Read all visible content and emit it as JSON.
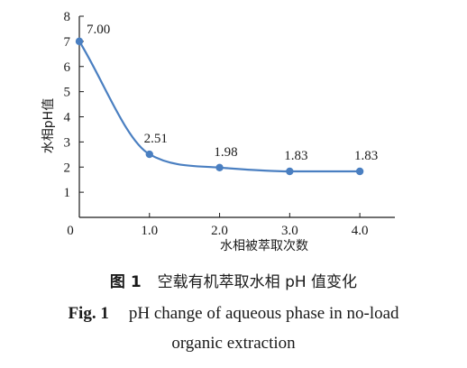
{
  "chart_data": {
    "type": "line",
    "x": [
      0,
      1.0,
      2.0,
      3.0,
      4.0
    ],
    "y": [
      7.0,
      2.51,
      1.98,
      1.83,
      1.83
    ],
    "data_labels": [
      "7.00",
      "2.51",
      "1.98",
      "1.83",
      "1.83"
    ],
    "xlabel": "水相被萃取次数",
    "ylabel": "水相pH值",
    "xlim": [
      0,
      4.5
    ],
    "ylim": [
      0,
      8
    ],
    "x_ticks": [
      0,
      1.0,
      2.0,
      3.0,
      4.0
    ],
    "x_tick_labels": [
      "0",
      "1.0",
      "2.0",
      "3.0",
      "4.0"
    ],
    "y_ticks": [
      1,
      2,
      3,
      4,
      5,
      6,
      7,
      8
    ],
    "y_tick_labels": [
      "1",
      "2",
      "3",
      "4",
      "5",
      "6",
      "7",
      "8"
    ],
    "grid": false,
    "smooth": true,
    "series_color": "#4a7fc1"
  },
  "caption": {
    "cn_fig": "图 1",
    "cn_text": "空载有机萃取水相 pH 值变化",
    "en_fig": "Fig. 1",
    "en_line1": "pH change of aqueous phase in no-load",
    "en_line2": "organic extraction"
  }
}
